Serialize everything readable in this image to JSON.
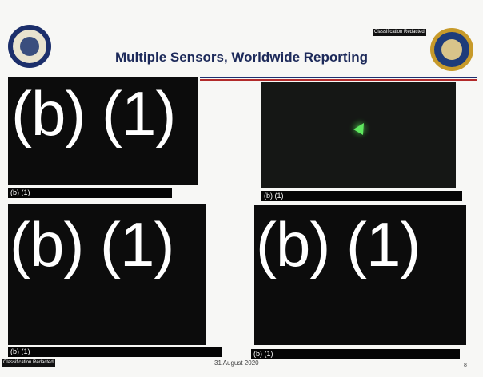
{
  "header": {
    "classification": "Classification Redacted",
    "title": "Multiple Sensors, Worldwide Reporting"
  },
  "panels": [
    {
      "redaction": "(b) (1)",
      "caption": "(b) (1)"
    },
    {
      "caption": "(b) (1)"
    },
    {
      "redaction": "(b) (1)",
      "caption": "(b) (1)"
    },
    {
      "redaction": "(b) (1)",
      "caption": "(b) (1)"
    }
  ],
  "footer": {
    "classification": "Classification Redacted",
    "date": "31 August 2020",
    "page": "8"
  }
}
